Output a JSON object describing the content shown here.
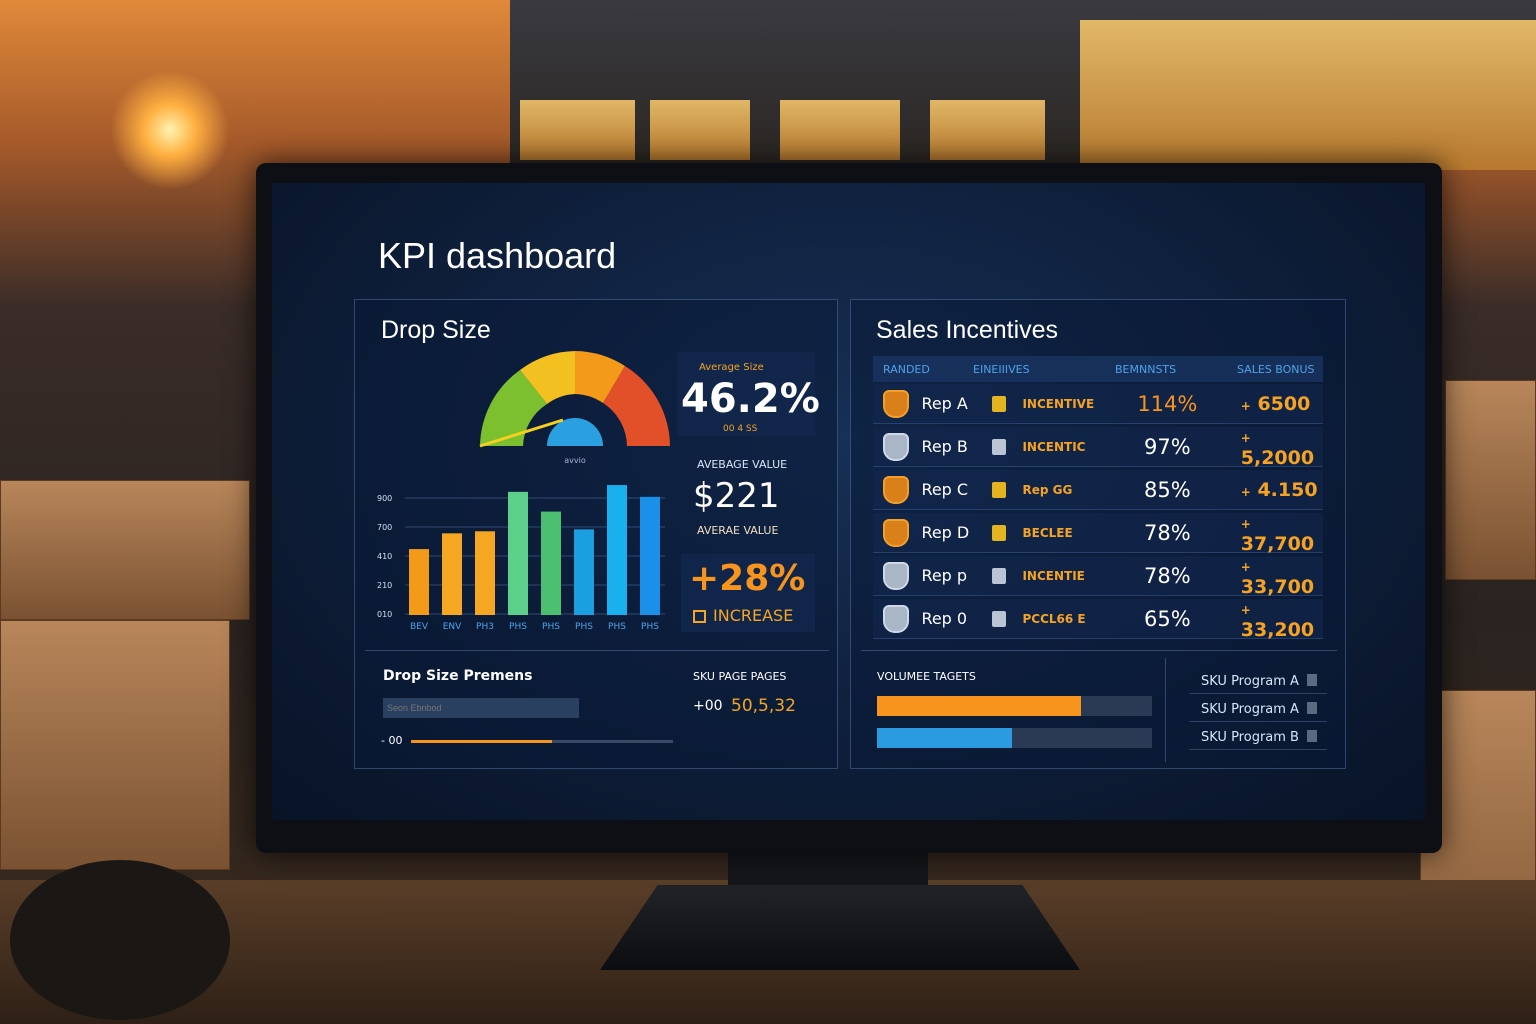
{
  "dashboard": {
    "title": "KPI dashboard"
  },
  "drop_size": {
    "title": "Drop Size",
    "gauge": {
      "label": "avvio",
      "colors": [
        "#7cc030",
        "#f2c020",
        "#f39a1a",
        "#e2502a"
      ]
    },
    "kpi_avg_size": {
      "label": "Average Size",
      "value": "46.2%",
      "sub": "00 4 SS"
    },
    "kpi_avg_value": {
      "label": "AVEBAGE VALUE",
      "value": "$221",
      "sub": "AVERAE VALUE"
    },
    "kpi_increase": {
      "value": "+28%",
      "label": "INCREASE"
    },
    "footer": {
      "title": "Drop Size Premens",
      "input_placeholder": "Seon Ebnbod",
      "slider_label": "- 00",
      "slider_fraction": 0.54,
      "sku_title": "SKU PAGE PAGES",
      "sku_prefix": "+00",
      "sku_value": "50,5,32"
    }
  },
  "chart_data": {
    "type": "bar",
    "categories": [
      "BEV",
      "ENV",
      "PH3",
      "PHS",
      "PHS",
      "PHS",
      "PHS",
      "PHS"
    ],
    "values": [
      515,
      638,
      654,
      962,
      808,
      669,
      1015,
      923
    ],
    "colors": [
      "#f39a1a",
      "#f5a623",
      "#f5a623",
      "#5ccf8a",
      "#4cc070",
      "#1aa0e0",
      "#1ab0f0",
      "#1a90e8"
    ],
    "yticks": [
      "900",
      "700",
      "410",
      "210",
      "010"
    ],
    "ylim": [
      0,
      1050
    ],
    "grid": true
  },
  "sales": {
    "title": "Sales Incentives",
    "columns": [
      "RANDED",
      "EINEIIIVES",
      "BEMNNSTS",
      "SALES BONUS"
    ],
    "rows": [
      {
        "name": "Rep A",
        "incentive": "INCENTIVE",
        "pct": "114%",
        "bonus": "6500",
        "medal": "gold"
      },
      {
        "name": "Rep B",
        "incentive": "INCENTIC",
        "pct": "97%",
        "bonus": "5,2000",
        "medal": "silver"
      },
      {
        "name": "Rep C",
        "incentive": "Rep GG",
        "pct": "85%",
        "bonus": "4.150",
        "medal": "gold"
      },
      {
        "name": "Rep D",
        "incentive": "BECLEE",
        "pct": "78%",
        "bonus": "37,700",
        "medal": "gold"
      },
      {
        "name": "Rep p",
        "incentive": "INCENTIE",
        "pct": "78%",
        "bonus": "33,700",
        "medal": "silver"
      },
      {
        "name": "Rep 0",
        "incentive": "PCCL66 E",
        "pct": "65%",
        "bonus": "33,200",
        "medal": "silver"
      }
    ],
    "bonus_prefix": "+",
    "volume": {
      "title": "VOLUMEE TAGETS",
      "bars": [
        {
          "fraction": 0.74,
          "color": "#f7941d"
        },
        {
          "fraction": 0.49,
          "color": "#2a9be0"
        }
      ]
    },
    "sku_programs": [
      "SKU Program  A",
      "SKU Program  A",
      "SKU Program  B"
    ]
  }
}
